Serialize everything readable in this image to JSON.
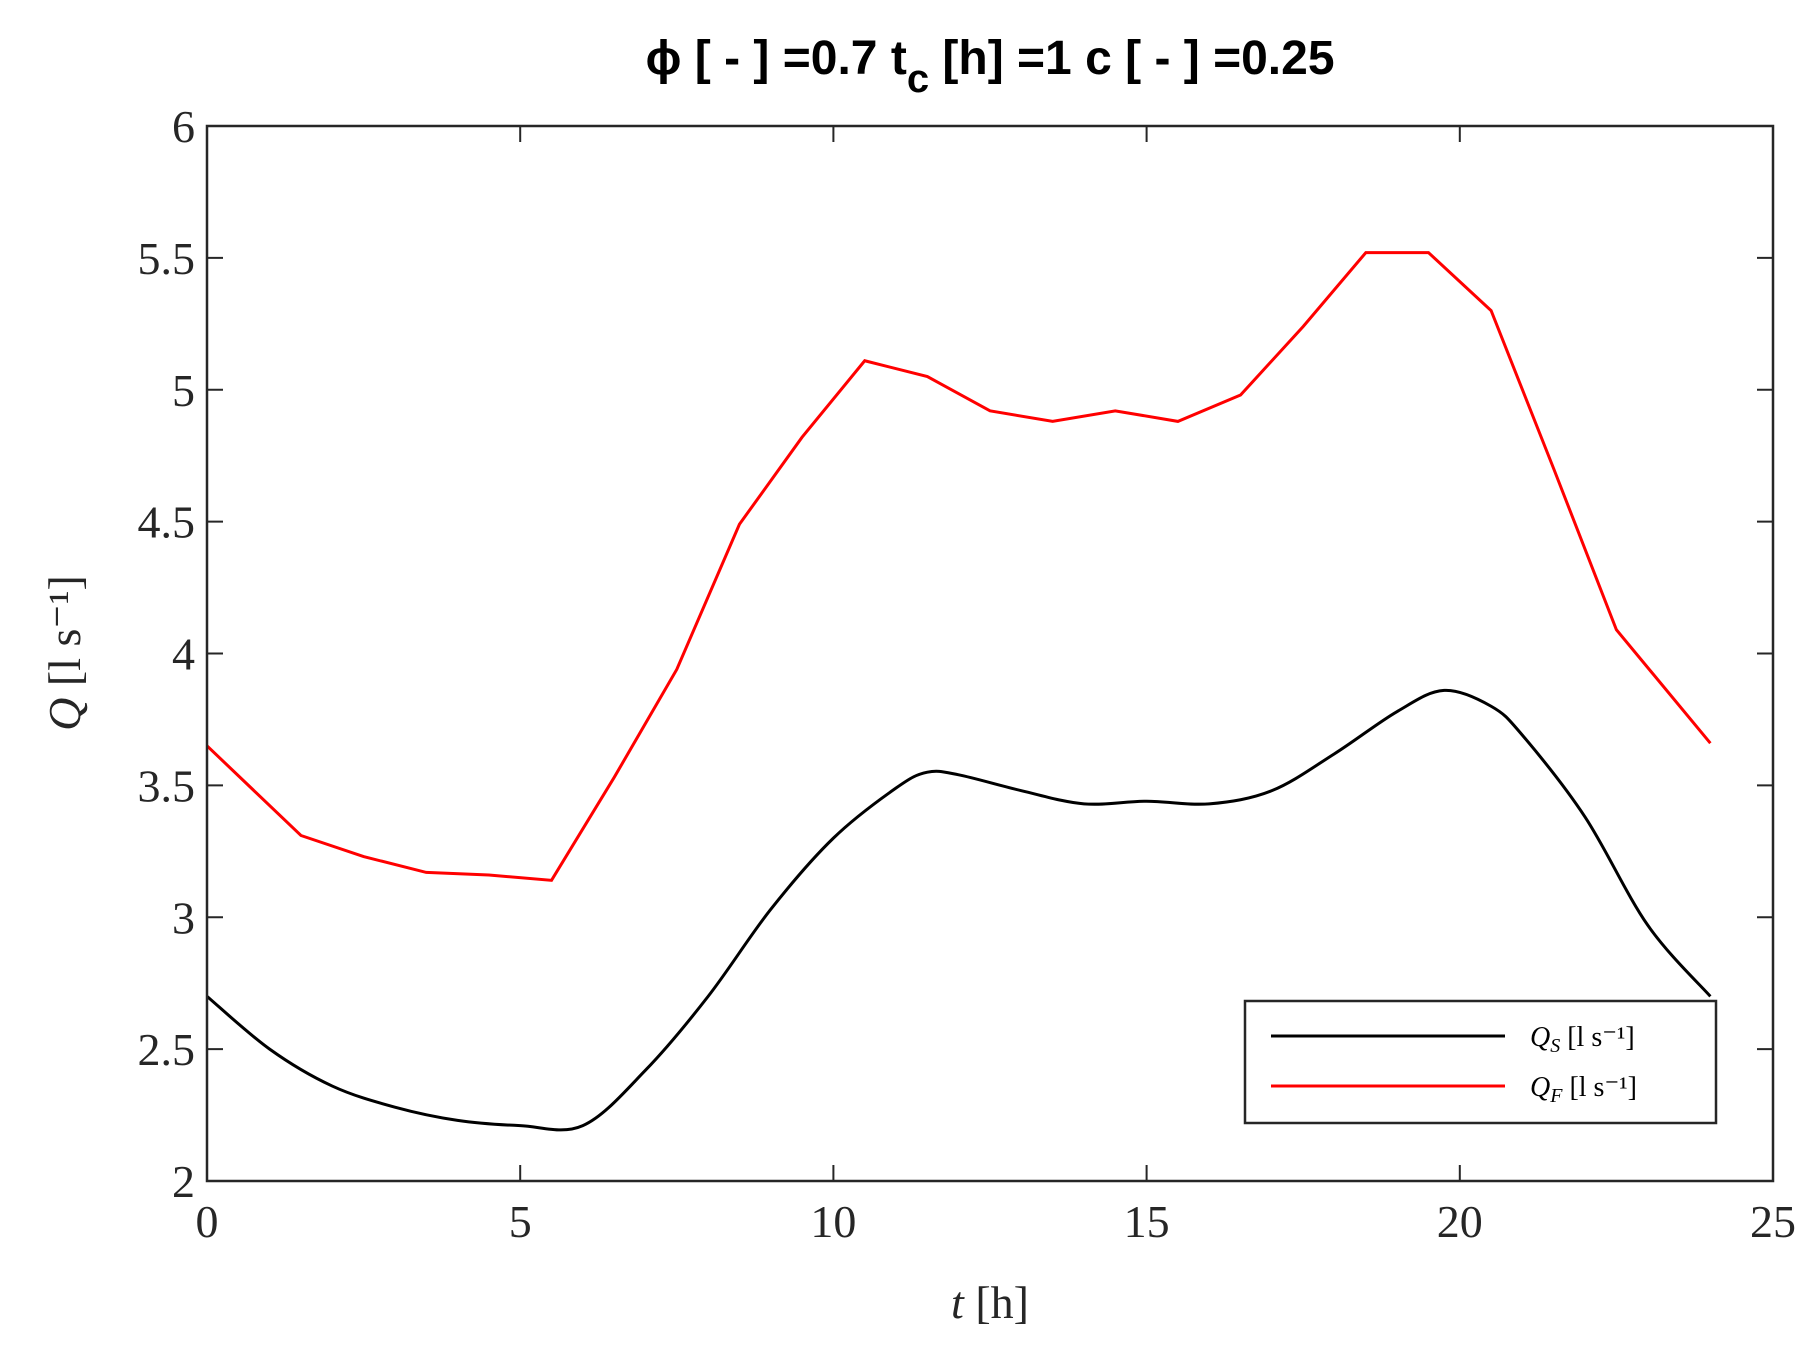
{
  "chart_data": {
    "type": "line",
    "title": "ϕ [ - ] =0.7   t",
    "title_subscript": "c",
    "title_rest": " [h] =1  c [ - ] =0.25",
    "xlabel": "t",
    "xlabel_unit": " [h]",
    "ylabel": "Q",
    "ylabel_unit": " [l s⁻¹]",
    "xlim": [
      0,
      25
    ],
    "xticks": [
      0,
      5,
      10,
      15,
      20,
      25
    ],
    "ylim": [
      2,
      6
    ],
    "yticks": [
      2,
      2.5,
      3,
      3.5,
      4,
      4.5,
      5,
      5.5,
      6
    ],
    "legend": "lower right",
    "series": [
      {
        "name": "Q",
        "subscript": "S",
        "unit": " [l s⁻¹]",
        "color": "#000000",
        "smooth": true,
        "x": [
          0,
          1,
          2,
          3,
          4,
          5,
          6,
          7,
          8,
          9,
          10,
          11,
          11.5,
          12,
          13,
          14,
          15,
          16,
          17,
          18,
          19,
          19.75,
          20.5,
          21,
          22,
          23,
          24
        ],
        "values": [
          2.7,
          2.5,
          2.36,
          2.28,
          2.23,
          2.21,
          2.21,
          2.42,
          2.7,
          3.03,
          3.3,
          3.49,
          3.55,
          3.54,
          3.48,
          3.43,
          3.44,
          3.43,
          3.48,
          3.62,
          3.78,
          3.86,
          3.8,
          3.69,
          3.38,
          2.97,
          2.7
        ]
      },
      {
        "name": "Q",
        "subscript": "F",
        "unit": " [l s⁻¹]",
        "color": "#ff0000",
        "smooth": false,
        "x": [
          0,
          1.5,
          2.5,
          3.5,
          4.5,
          5.5,
          6.5,
          7.5,
          8.5,
          9.5,
          10.5,
          11.5,
          12.5,
          13.5,
          14.5,
          15.5,
          16.5,
          17.5,
          18.5,
          19.5,
          20.5,
          21.5,
          22.5,
          24
        ],
        "values": [
          3.65,
          3.31,
          3.23,
          3.17,
          3.16,
          3.14,
          3.53,
          3.94,
          4.49,
          4.82,
          5.11,
          5.05,
          4.92,
          4.88,
          4.92,
          4.88,
          4.98,
          5.24,
          5.52,
          5.52,
          5.3,
          4.7,
          4.09,
          3.66
        ]
      }
    ]
  }
}
